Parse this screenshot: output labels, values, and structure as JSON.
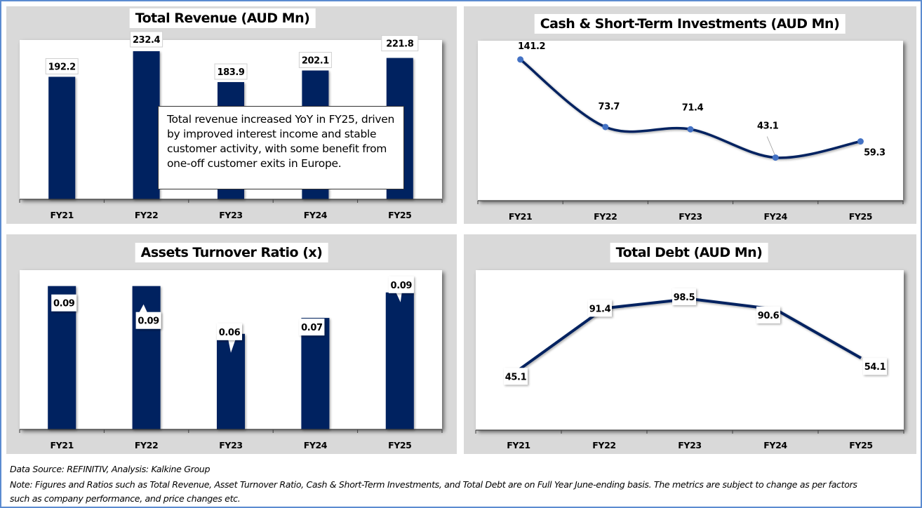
{
  "chart_data": [
    {
      "id": "revenue",
      "type": "bar",
      "title": "Total Revenue (AUD Mn)",
      "categories": [
        "FY21",
        "FY22",
        "FY23",
        "FY24",
        "FY25"
      ],
      "values": [
        192.2,
        232.4,
        183.9,
        202.1,
        221.8
      ],
      "data_labels": [
        "192.2",
        "232.4",
        "183.9",
        "202.1",
        "221.8"
      ],
      "xlabel": "",
      "ylabel": "",
      "ylim": [
        0,
        250
      ],
      "grid": false,
      "color": "#002060",
      "annotation": "Total revenue increased YoY in FY25, driven by improved interest income and stable customer activity, with some benefit from one-off customer exits in Europe."
    },
    {
      "id": "cash",
      "type": "line",
      "smooth": true,
      "title": "Cash & Short-Term Investments (AUD Mn)",
      "categories": [
        "FY21",
        "FY22",
        "FY23",
        "FY24",
        "FY25"
      ],
      "values": [
        141.2,
        73.7,
        71.4,
        43.1,
        59.3
      ],
      "data_labels": [
        "141.2",
        "73.7",
        "71.4",
        "43.1",
        "59.3"
      ],
      "xlabel": "",
      "ylabel": "",
      "ylim": [
        0,
        160
      ],
      "grid": false,
      "color": "#002060",
      "marker_color": "#4472c4"
    },
    {
      "id": "atr",
      "type": "bar",
      "title": "Assets Turnover Ratio (x)",
      "categories": [
        "FY21",
        "FY22",
        "FY23",
        "FY24",
        "FY25"
      ],
      "values": [
        0.09,
        0.09,
        0.06,
        0.07,
        0.086
      ],
      "data_labels": [
        "0.09",
        "0.09",
        "0.06",
        "0.07",
        "0.09"
      ],
      "xlabel": "",
      "ylabel": "",
      "ylim": [
        0,
        0.1
      ],
      "grid": false,
      "color": "#002060"
    },
    {
      "id": "debt",
      "type": "line",
      "smooth": false,
      "title": "Total Debt (AUD Mn)",
      "categories": [
        "FY21",
        "FY22",
        "FY23",
        "FY24",
        "FY25"
      ],
      "values": [
        45.1,
        91.4,
        98.5,
        90.6,
        54.1
      ],
      "data_labels": [
        "45.1",
        "91.4",
        "98.5",
        "90.6",
        "54.1"
      ],
      "xlabel": "",
      "ylabel": "",
      "ylim": [
        0,
        120
      ],
      "grid": false,
      "color": "#002060"
    }
  ],
  "footer": {
    "source": "Data Source: REFINITIV, Analysis: Kalkine Group",
    "note_line1": "Note: Figures and Ratios such as Total Revenue, Asset Turnover Ratio, Cash & Short-Term Investments, and Total Debt are on Full Year June-ending basis. The metrics are subject to change as per factors",
    "note_line2": "such as company performance, and price changes etc."
  }
}
